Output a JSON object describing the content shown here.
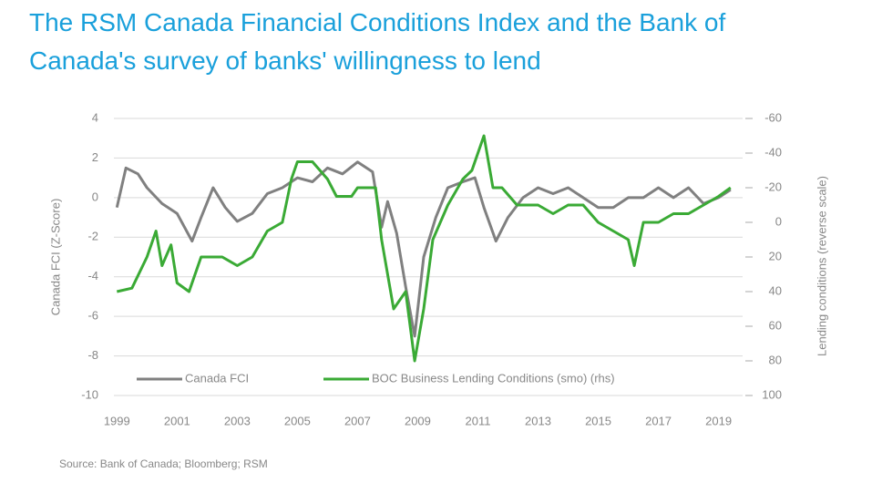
{
  "chart_data": {
    "type": "line",
    "title": [
      "The RSM Canada Financial Conditions Index and the Bank of",
      "Canada's  survey of banks' willingness to lend"
    ],
    "y_label": "Canada FCI (Z-Score)",
    "y2_label": "Lending conditions (reverse scale)",
    "source": "Source: Bank of Canada; Bloomberg; RSM",
    "xlim": [
      1998.9,
      2019.8
    ],
    "xticks": [
      1999,
      2001,
      2003,
      2005,
      2007,
      2009,
      2011,
      2013,
      2015,
      2017,
      2019
    ],
    "ylim": [
      -10,
      4
    ],
    "yticks": [
      -10,
      -8,
      -6,
      -4,
      -2,
      0,
      2,
      4
    ],
    "y2lim": [
      100,
      -60
    ],
    "y2ticks": [
      100,
      80,
      60,
      40,
      20,
      0,
      -20,
      -40,
      -60
    ],
    "y2_reverse": true,
    "grid": true,
    "legend": "bottom-left",
    "series": [
      {
        "name": "Canada FCI",
        "color": "#808080",
        "x": [
          1999,
          1999.3,
          1999.7,
          2000,
          2000.5,
          2001,
          2001.5,
          2001.8,
          2002.2,
          2002.6,
          2003,
          2003.5,
          2004,
          2004.5,
          2005,
          2005.5,
          2006,
          2006.5,
          2007,
          2007.5,
          2007.8,
          2008,
          2008.3,
          2008.6,
          2008.9,
          2009.2,
          2009.6,
          2010,
          2010.5,
          2010.9,
          2011.2,
          2011.6,
          2012,
          2012.5,
          2013,
          2013.5,
          2014,
          2014.5,
          2015,
          2015.5,
          2016,
          2016.5,
          2017,
          2017.5,
          2018,
          2018.5,
          2019,
          2019.4
        ],
        "values": [
          -0.5,
          1.5,
          1.2,
          0.5,
          -0.3,
          -0.8,
          -2.2,
          -1.0,
          0.5,
          -0.5,
          -1.2,
          -0.8,
          0.2,
          0.5,
          1.0,
          0.8,
          1.5,
          1.2,
          1.8,
          1.3,
          -1.5,
          -0.2,
          -1.8,
          -4.5,
          -7.0,
          -3.0,
          -1.0,
          0.5,
          0.8,
          1.0,
          -0.5,
          -2.2,
          -1.0,
          0.0,
          0.5,
          0.2,
          0.5,
          0.0,
          -0.5,
          -0.5,
          0.0,
          0.0,
          0.5,
          0.0,
          0.5,
          -0.3,
          0.0,
          0.4
        ]
      },
      {
        "name": "BOC Business Lending Conditions (smo) (rhs)",
        "color": "#3aaa35",
        "axis": "y2",
        "x": [
          1999,
          1999.5,
          2000,
          2000.3,
          2000.5,
          2000.8,
          2001,
          2001.4,
          2001.8,
          2002.5,
          2003,
          2003.5,
          2004,
          2004.5,
          2004.8,
          2005,
          2005.5,
          2006,
          2006.3,
          2006.8,
          2007,
          2007.6,
          2007.8,
          2008.2,
          2008.6,
          2008.9,
          2009.2,
          2009.5,
          2010,
          2010.5,
          2010.8,
          2011,
          2011.2,
          2011.5,
          2011.8,
          2012.3,
          2013,
          2013.5,
          2014,
          2014.5,
          2015,
          2015.5,
          2016,
          2016.2,
          2016.5,
          2017,
          2017.5,
          2018,
          2018.5,
          2019,
          2019.4
        ],
        "values": [
          40,
          38,
          20,
          5,
          25,
          13,
          35,
          40,
          20,
          20,
          25,
          20,
          5,
          0,
          -25,
          -35,
          -35,
          -25,
          -15,
          -15,
          -20,
          -20,
          10,
          50,
          40,
          80,
          50,
          10,
          -10,
          -25,
          -30,
          -40,
          -50,
          -20,
          -20,
          -10,
          -10,
          -5,
          -10,
          -10,
          0,
          5,
          10,
          25,
          0,
          0,
          -5,
          -5,
          -10,
          -15,
          -20
        ]
      }
    ]
  }
}
